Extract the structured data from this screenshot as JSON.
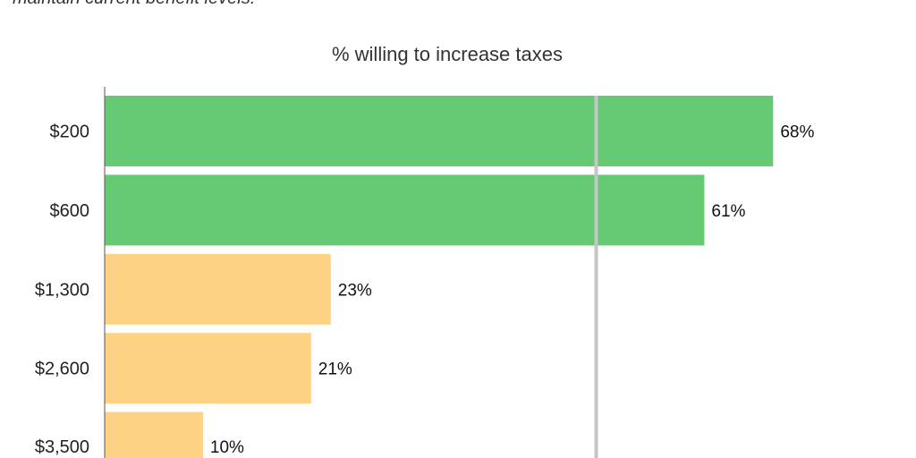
{
  "caption": "maintain current benefit levels.",
  "chart_data": {
    "type": "bar",
    "orientation": "horizontal",
    "title": "% willing to increase taxes",
    "categories": [
      "$200",
      "$600",
      "$1,300",
      "$2,600",
      "$3,500"
    ],
    "values": [
      68,
      61,
      23,
      21,
      10
    ],
    "value_labels": [
      "68%",
      "61%",
      "23%",
      "21%",
      "10%"
    ],
    "colors": [
      "#66c973",
      "#66c973",
      "#fdd285",
      "#fdd285",
      "#fdd285"
    ],
    "reference_line": 50,
    "reference_color": "#c4c6c8",
    "xlim": [
      0,
      70
    ],
    "grid": false
  }
}
